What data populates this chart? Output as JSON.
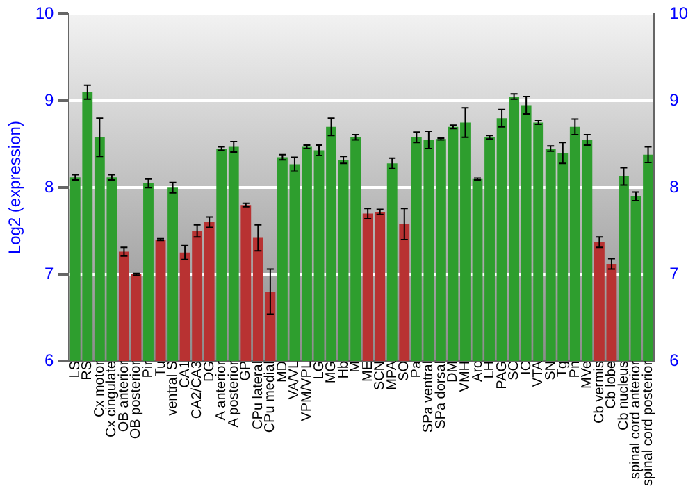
{
  "chart_data": {
    "type": "bar",
    "ylabel": "Log2 (expression)",
    "categories": [
      "LS",
      "RS",
      "Cx motor",
      "Cx cingulate",
      "OB anterior",
      "OB posterior",
      "Pir",
      "Tu",
      "ventral S",
      "CA1",
      "CA2/CA3",
      "DG",
      "A anterior",
      "A posterior",
      "GP",
      "CPu lateral",
      "CPu medial",
      "MD",
      "VA/VL",
      "VPM/VPL",
      "LG",
      "MG",
      "Hb",
      "M",
      "ME",
      "SCN",
      "MPA",
      "SO",
      "Pa",
      "SPa ventral",
      "SPa dorsal",
      "DM",
      "VMH",
      "Arc",
      "LH",
      "PAG",
      "SC",
      "IC",
      "VTA",
      "SN",
      "Tg",
      "Pn",
      "MVe",
      "Cb vermis",
      "Cb lobe",
      "Cb nucleus",
      "spinal cord anterior",
      "spinal cord posterior"
    ],
    "values": [
      8.12,
      9.1,
      8.58,
      8.12,
      7.26,
      7.0,
      8.05,
      7.4,
      8.0,
      7.25,
      7.5,
      7.6,
      8.45,
      8.47,
      7.8,
      7.42,
      6.8,
      8.35,
      8.27,
      8.47,
      8.43,
      8.7,
      8.32,
      8.58,
      7.7,
      7.72,
      8.28,
      7.58,
      8.58,
      8.55,
      8.56,
      8.7,
      8.75,
      8.1,
      8.58,
      8.8,
      9.05,
      8.95,
      8.75,
      8.45,
      8.4,
      8.7,
      8.55,
      7.37,
      7.12,
      8.13,
      7.9,
      8.38
    ],
    "errors": [
      0.03,
      0.08,
      0.22,
      0.03,
      0.05,
      0.01,
      0.05,
      0.01,
      0.06,
      0.08,
      0.07,
      0.06,
      0.02,
      0.06,
      0.02,
      0.15,
      0.26,
      0.03,
      0.08,
      0.02,
      0.06,
      0.1,
      0.04,
      0.03,
      0.06,
      0.03,
      0.06,
      0.18,
      0.06,
      0.1,
      0.01,
      0.02,
      0.17,
      0.01,
      0.02,
      0.1,
      0.03,
      0.1,
      0.02,
      0.03,
      0.12,
      0.09,
      0.06,
      0.06,
      0.06,
      0.1,
      0.05,
      0.09
    ],
    "colors": [
      "#2e9e2e",
      "#2e9e2e",
      "#2e9e2e",
      "#2e9e2e",
      "#b83232",
      "#b83232",
      "#2e9e2e",
      "#b83232",
      "#2e9e2e",
      "#b83232",
      "#b83232",
      "#b83232",
      "#2e9e2e",
      "#2e9e2e",
      "#b83232",
      "#b83232",
      "#b83232",
      "#2e9e2e",
      "#2e9e2e",
      "#2e9e2e",
      "#2e9e2e",
      "#2e9e2e",
      "#2e9e2e",
      "#2e9e2e",
      "#b83232",
      "#b83232",
      "#2e9e2e",
      "#b83232",
      "#2e9e2e",
      "#2e9e2e",
      "#2e9e2e",
      "#2e9e2e",
      "#2e9e2e",
      "#2e9e2e",
      "#2e9e2e",
      "#2e9e2e",
      "#2e9e2e",
      "#2e9e2e",
      "#2e9e2e",
      "#2e9e2e",
      "#2e9e2e",
      "#2e9e2e",
      "#2e9e2e",
      "#b83232",
      "#b83232",
      "#2e9e2e",
      "#2e9e2e",
      "#2e9e2e"
    ],
    "ylim": [
      6,
      10
    ],
    "yticks": [
      6,
      7,
      8,
      9,
      10
    ],
    "y2lim": [
      6,
      10
    ],
    "y2ticks": [
      6,
      7,
      8,
      9,
      10
    ],
    "grid": "y",
    "legend": false
  }
}
